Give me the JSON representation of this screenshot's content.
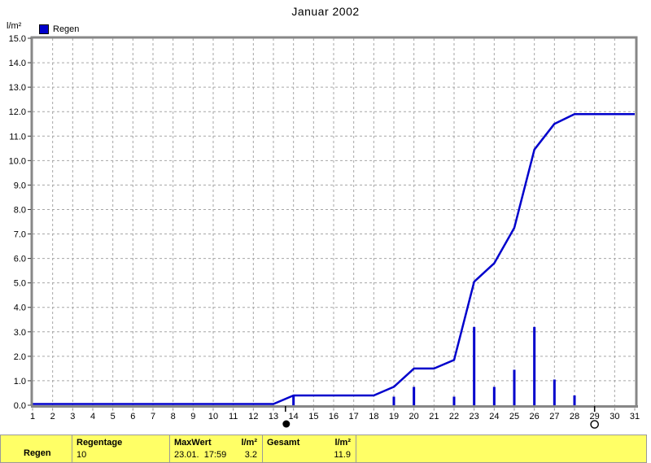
{
  "colors": {
    "accent": "#0000CC",
    "panel_bg": "#FFFF66",
    "grid": "#A6A6A6",
    "frame": "#878787"
  },
  "chart_data": {
    "type": "line+bar",
    "title": "Januar 2002",
    "ylabel": "l/m²",
    "xlabel": "",
    "legend": [
      "Regen"
    ],
    "legend_position": "top-left",
    "grid": true,
    "xlim": [
      1,
      31
    ],
    "ylim": [
      0,
      15
    ],
    "xtick_step": 1,
    "ytick_step": 1,
    "series": [
      {
        "name": "Regen Tagessumme",
        "type": "bar",
        "color": "#0000CC",
        "points": [
          [
            14,
            0.4
          ],
          [
            19,
            0.35
          ],
          [
            20,
            0.75
          ],
          [
            22,
            0.35
          ],
          [
            23,
            3.2
          ],
          [
            24,
            0.75
          ],
          [
            25,
            1.45
          ],
          [
            26,
            3.2
          ],
          [
            27,
            1.05
          ],
          [
            28,
            0.4
          ]
        ]
      },
      {
        "name": "Regen Summe",
        "type": "line",
        "color": "#0000CC",
        "points": [
          [
            1,
            0.05
          ],
          [
            13,
            0.05
          ],
          [
            14,
            0.4
          ],
          [
            18,
            0.4
          ],
          [
            19,
            0.75
          ],
          [
            20,
            1.5
          ],
          [
            21,
            1.5
          ],
          [
            22,
            1.85
          ],
          [
            23,
            5.05
          ],
          [
            24,
            5.8
          ],
          [
            25,
            7.25
          ],
          [
            26,
            10.45
          ],
          [
            27,
            11.5
          ],
          [
            28,
            11.9
          ],
          [
            31,
            11.9
          ]
        ]
      }
    ],
    "annotations": [
      {
        "symbol": "new-moon",
        "x": 13.6
      },
      {
        "symbol": "full-moon",
        "x": 29.0
      }
    ]
  },
  "panel": {
    "row_label": "Regen",
    "col_regentage": {
      "header": "Regentage",
      "value": "10"
    },
    "col_maxwert": {
      "header": "MaxWert",
      "unit": "l/m²",
      "time": "23.01.  17:59",
      "value": "3.2"
    },
    "col_gesamt": {
      "header": "Gesamt",
      "unit": "l/m²",
      "value": "11.9"
    }
  }
}
